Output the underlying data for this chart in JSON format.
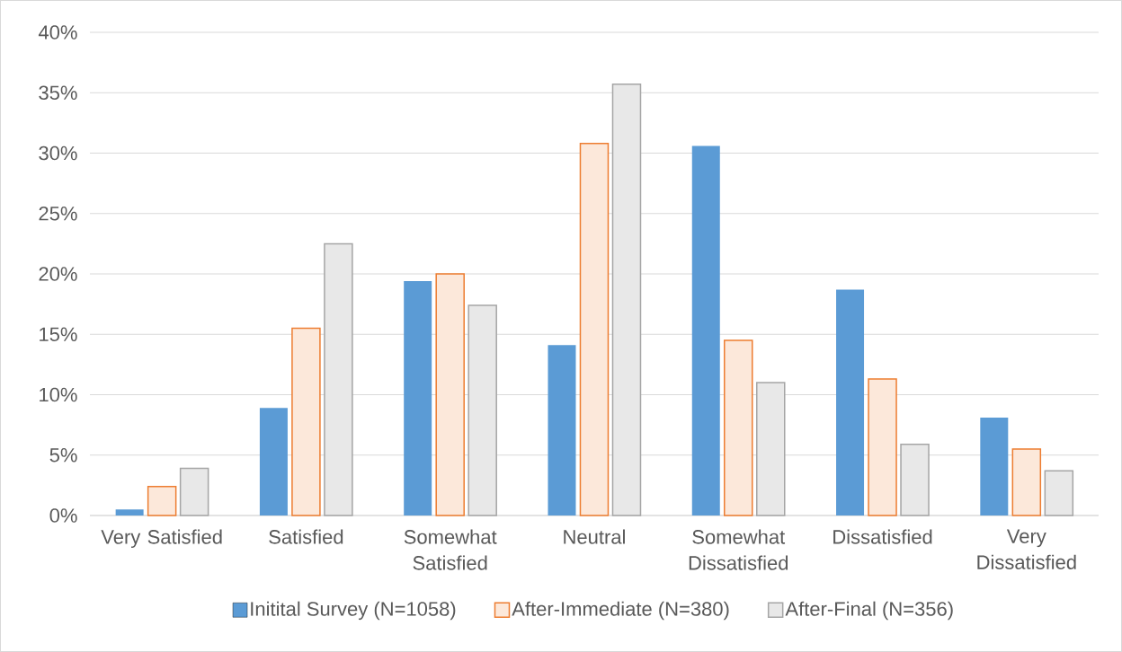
{
  "chart_data": {
    "type": "bar",
    "categories": [
      "Very Satisfied",
      "Satisfied",
      "Somewhat Satisfied",
      "Neutral",
      "Somewhat Dissatisfied",
      "Dissatisfied",
      "Very Dissatisfied"
    ],
    "series": [
      {
        "name": "Initital Survey (N=1058)",
        "color": "#5b9bd5",
        "values": [
          0.5,
          8.9,
          19.4,
          14.1,
          30.6,
          18.7,
          8.1
        ]
      },
      {
        "name": "After-Immediate (N=380)",
        "color": "#ed7d31",
        "values": [
          2.4,
          15.5,
          20.0,
          30.8,
          14.5,
          11.3,
          5.5
        ]
      },
      {
        "name": "After-Final (N=356)",
        "color": "#a5a5a5",
        "values": [
          3.9,
          22.5,
          17.4,
          35.7,
          11.0,
          5.9,
          3.7
        ]
      }
    ],
    "ylim": [
      0,
      40
    ],
    "yticks": [
      {
        "value": 0,
        "label": "0%"
      },
      {
        "value": 5,
        "label": "5%"
      },
      {
        "value": 10,
        "label": "10%"
      },
      {
        "value": 15,
        "label": "15%"
      },
      {
        "value": 20,
        "label": "20%"
      },
      {
        "value": 25,
        "label": "25%"
      },
      {
        "value": 30,
        "label": "30%"
      },
      {
        "value": 35,
        "label": "35%"
      },
      {
        "value": 40,
        "label": "40%"
      }
    ],
    "grid": "y",
    "legend": "bottom"
  }
}
